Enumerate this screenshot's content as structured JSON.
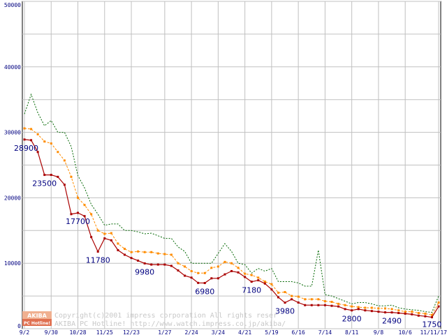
{
  "chart_data": {
    "type": "line",
    "ylim": [
      0,
      50000
    ],
    "y_ticks": [
      "50000",
      "40000",
      "30000",
      "20000",
      "10000",
      "0"
    ],
    "y_tick_values": [
      50000,
      40000,
      30000,
      20000,
      10000,
      0
    ],
    "x_tick_labels": [
      "9/2",
      "9/30",
      "10/28",
      "11/25",
      "12/23",
      "1/27",
      "2/24",
      "3/24",
      "4/21",
      "5/19",
      "6/16",
      "7/14",
      "8/11",
      "9/8",
      "10/6",
      "11/11/17"
    ],
    "x_tick_index": [
      0,
      4,
      8,
      12,
      16,
      21,
      25,
      29,
      33,
      37,
      41,
      45,
      49,
      53,
      57,
      62
    ],
    "grid": true,
    "series": [
      {
        "color": "#006600",
        "style": "dotted",
        "values": [
          32800,
          35800,
          33000,
          31000,
          31800,
          30000,
          30000,
          27800,
          23400,
          21500,
          19000,
          17500,
          15800,
          16000,
          16000,
          15000,
          15000,
          14800,
          14500,
          14600,
          14200,
          13800,
          13800,
          12500,
          11800,
          10000,
          10000,
          10000,
          10000,
          11500,
          13000,
          11800,
          10000,
          9800,
          8500,
          9200,
          8800,
          9200,
          7200,
          7200,
          7200,
          7000,
          6500,
          6500,
          12000,
          5200,
          5000,
          4600,
          4200,
          3800,
          4000,
          4000,
          3800,
          3500,
          3500,
          3600,
          3200,
          3000,
          2900,
          2800,
          2600,
          2500,
          5000
        ]
      },
      {
        "color": "#ff8c00",
        "style": "dashed",
        "values": [
          30600,
          30500,
          29700,
          28600,
          28300,
          27000,
          25700,
          23200,
          20000,
          18900,
          17500,
          15000,
          14500,
          14600,
          13000,
          12200,
          11700,
          11800,
          11700,
          11700,
          11500,
          11400,
          11300,
          10000,
          9500,
          8800,
          8500,
          8500,
          9300,
          9500,
          10200,
          10000,
          9300,
          8400,
          8200,
          7800,
          7200,
          6800,
          5500,
          5600,
          5000,
          4900,
          4500,
          4500,
          4500,
          4200,
          4100,
          3800,
          3600,
          3400,
          3300,
          3200,
          3200,
          3100,
          3100,
          3000,
          2800,
          2600,
          2600,
          2400,
          2300,
          2100,
          4000
        ]
      },
      {
        "color": "#aa0000",
        "style": "solid",
        "values": [
          28900,
          28800,
          27000,
          23500,
          23500,
          23200,
          22000,
          17500,
          17700,
          17200,
          14000,
          11780,
          13800,
          13500,
          12000,
          11300,
          10800,
          10400,
          9980,
          9800,
          9800,
          9800,
          9600,
          8900,
          8100,
          7800,
          7000,
          6980,
          7700,
          7700,
          8300,
          8800,
          8600,
          7900,
          7180,
          7400,
          6900,
          6000,
          4800,
          3980,
          4500,
          4000,
          3600,
          3600,
          3600,
          3600,
          3500,
          3400,
          3000,
          2800,
          3000,
          2800,
          2700,
          2600,
          2500,
          2490,
          2400,
          2300,
          2200,
          2000,
          1900,
          1750,
          3400
        ]
      }
    ],
    "data_labels": [
      {
        "text": "28900",
        "index": 0,
        "value": 28900
      },
      {
        "text": "23500",
        "index": 3,
        "value": 23500
      },
      {
        "text": "17700",
        "index": 8,
        "value": 17700
      },
      {
        "text": "11780",
        "index": 11,
        "value": 11780
      },
      {
        "text": "9980",
        "index": 18,
        "value": 9980
      },
      {
        "text": "6980",
        "index": 27,
        "value": 6980
      },
      {
        "text": "7180",
        "index": 34,
        "value": 7180
      },
      {
        "text": "3980",
        "index": 39,
        "value": 3980
      },
      {
        "text": "2800",
        "index": 49,
        "value": 2800
      },
      {
        "text": "2490",
        "index": 55,
        "value": 2490
      },
      {
        "text": "1750",
        "index": 61,
        "value": 1750
      }
    ]
  },
  "watermark": {
    "logo_top": "AKIBA",
    "logo_bottom": "PC Hotline!",
    "line1": "Copyright(c)2001 impress corporation All rights reser",
    "line2": "AKIBA PC Hotline!  http://www.watch.impress.co.jp/akiba/"
  }
}
